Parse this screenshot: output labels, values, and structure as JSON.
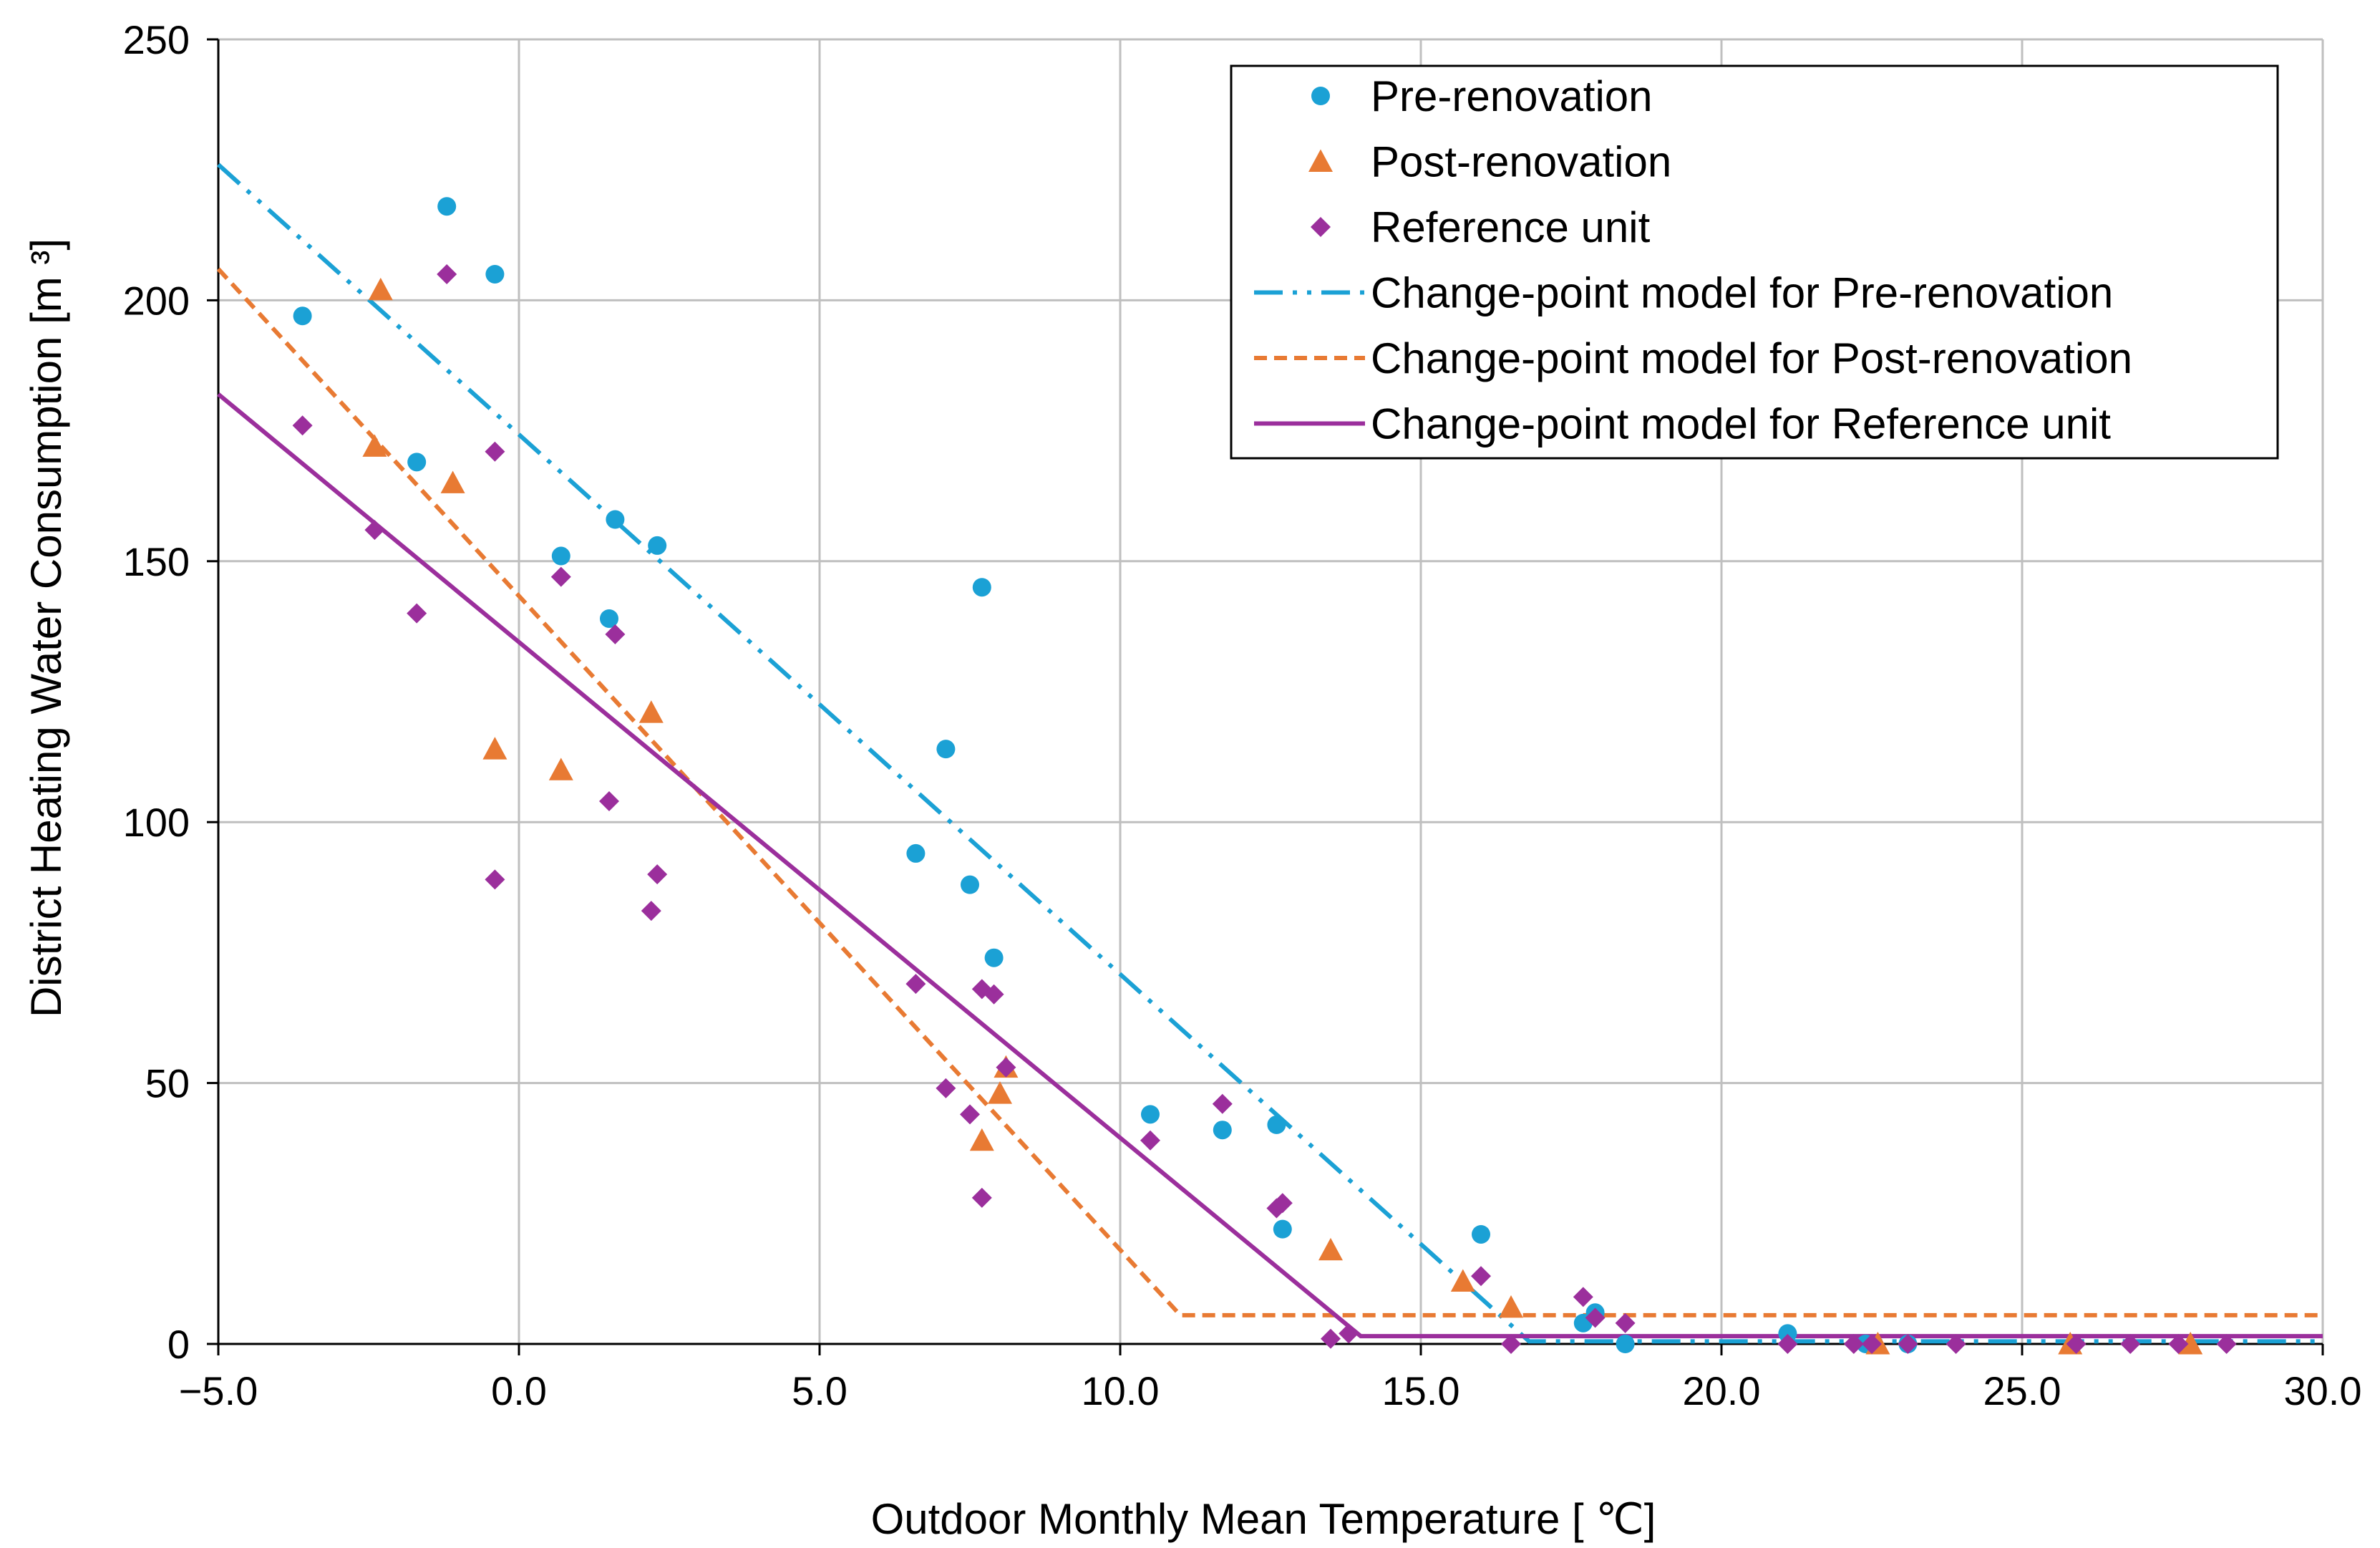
{
  "chart_data": {
    "type": "scatter",
    "title": "",
    "xlabel": "Outdoor Monthly Mean Temperature [ ℃]",
    "ylabel": "District Heating Water Consumption [m ³]",
    "xlim": [
      -5.0,
      30.0
    ],
    "ylim": [
      0,
      250
    ],
    "x_ticks": [
      "−5.0",
      "0.0",
      "5.0",
      "10.0",
      "15.0",
      "20.0",
      "25.0",
      "30.0"
    ],
    "y_ticks": [
      "0",
      "50",
      "100",
      "150",
      "200",
      "250"
    ],
    "grid": true,
    "legend_position": "top-right",
    "series": [
      {
        "name": "Pre-renovation",
        "kind": "scatter",
        "marker": "circle",
        "color": "#1ba1d5",
        "x": [
          -3.6,
          -1.7,
          -1.2,
          -0.4,
          0.7,
          1.5,
          1.6,
          2.3,
          6.6,
          7.1,
          7.5,
          7.7,
          7.9,
          10.5,
          11.7,
          12.6,
          12.7,
          16.0,
          17.7,
          17.9,
          18.4,
          21.1,
          22.4,
          23.1
        ],
        "y": [
          197,
          169,
          218,
          205,
          151,
          139,
          158,
          153,
          94,
          114,
          88,
          145,
          74,
          44,
          41,
          42,
          22,
          21,
          4,
          6,
          0,
          2,
          0,
          0
        ]
      },
      {
        "name": "Post-renovation",
        "kind": "scatter",
        "marker": "triangle",
        "color": "#e87a33",
        "x": [
          -2.3,
          -2.4,
          -1.1,
          -0.4,
          0.7,
          2.2,
          7.7,
          8.0,
          8.1,
          13.5,
          15.7,
          16.5,
          22.6,
          25.8,
          27.8
        ],
        "y": [
          202,
          172,
          165,
          114,
          110,
          121,
          39,
          48,
          53,
          18,
          12,
          7,
          0,
          0,
          0
        ]
      },
      {
        "name": "Reference unit",
        "kind": "scatter",
        "marker": "diamond",
        "color": "#9b2f9c",
        "x": [
          -3.6,
          -2.4,
          -1.7,
          -1.2,
          -0.4,
          -0.4,
          0.7,
          1.5,
          1.6,
          2.2,
          2.3,
          6.6,
          7.1,
          7.5,
          7.7,
          7.7,
          7.9,
          8.1,
          10.5,
          11.7,
          12.6,
          12.7,
          13.5,
          13.8,
          16.0,
          16.5,
          17.7,
          17.9,
          18.4,
          21.1,
          22.2,
          22.5,
          23.1,
          23.9,
          25.9,
          26.8,
          27.6,
          28.4
        ],
        "y": [
          176,
          156,
          140,
          205,
          171,
          89,
          147,
          104,
          136,
          83,
          90,
          69,
          49,
          44,
          28,
          68,
          67,
          53,
          39,
          46,
          26,
          27,
          1,
          2,
          13,
          0,
          9,
          5,
          4,
          0,
          0,
          0,
          0,
          0,
          0,
          0,
          0,
          0
        ]
      },
      {
        "name": "Change-point model for Pre-renovation",
        "kind": "line",
        "dash": "dash-dot-dot",
        "color": "#1ba1d5",
        "x": [
          -5.0,
          16.8,
          30.0
        ],
        "y": [
          226,
          0.5,
          0.5
        ]
      },
      {
        "name": "Change-point model for Post-renovation",
        "kind": "line",
        "dash": "dashed",
        "color": "#e87a33",
        "x": [
          -5.0,
          11.0,
          30.0
        ],
        "y": [
          206,
          5.5,
          5.5
        ]
      },
      {
        "name": "Change-point model for Reference unit",
        "kind": "line",
        "dash": "solid",
        "color": "#9b2f9c",
        "x": [
          -5.0,
          14.0,
          30.0
        ],
        "y": [
          182,
          1.5,
          1.5
        ]
      }
    ]
  }
}
